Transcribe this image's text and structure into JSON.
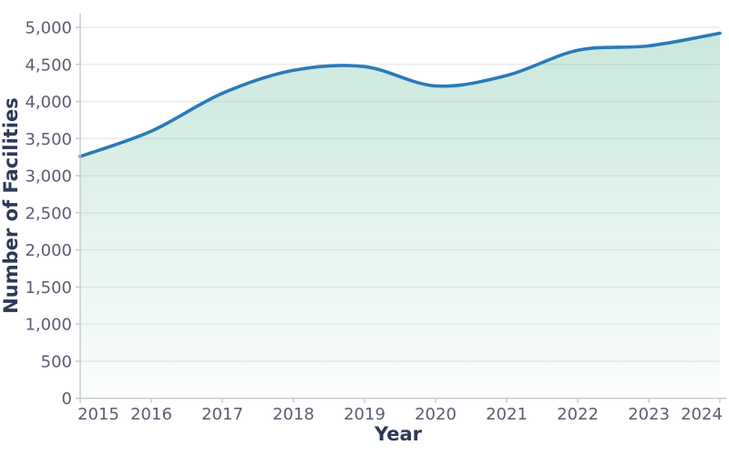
{
  "chart_data": {
    "type": "area",
    "title": "",
    "xlabel": "Year",
    "ylabel": "Number of Facilities",
    "categories": [
      2015,
      2016,
      2017,
      2018,
      2019,
      2020,
      2021,
      2022,
      2023,
      2024
    ],
    "x_tick_labels": [
      "2015",
      "2016",
      "2017",
      "2018",
      "2019",
      "2020",
      "2021",
      "2022",
      "2023",
      "2024"
    ],
    "series": [
      {
        "name": "Number of Facilities",
        "values": [
          3260,
          3600,
          4110,
          4420,
          4470,
          4210,
          4350,
          4690,
          4750,
          4920
        ]
      }
    ],
    "ylim": [
      0,
      5180
    ],
    "xlim": [
      2015,
      2024
    ],
    "yticks": [
      0,
      500,
      1000,
      1500,
      2000,
      2500,
      3000,
      3500,
      4000,
      4500,
      5000
    ],
    "ytick_labels": [
      "0",
      "500",
      "1,000",
      "1,500",
      "2,000",
      "2,500",
      "3,000",
      "3,500",
      "4,000",
      "4,500",
      "5,000"
    ],
    "grid": "horizontal",
    "legend": "none",
    "smoothing": "spline",
    "colors": {
      "line": "#2a7ab8",
      "fill_top": "rgba(122,197,168,0.40)",
      "fill_bottom": "rgba(122,197,168,0.03)",
      "axis_title": "#2d3a54",
      "tick_label": "#5b5e70",
      "gridline": "#e7e9ee",
      "spine": "#c6c9d2",
      "background": "#ffffff"
    }
  }
}
